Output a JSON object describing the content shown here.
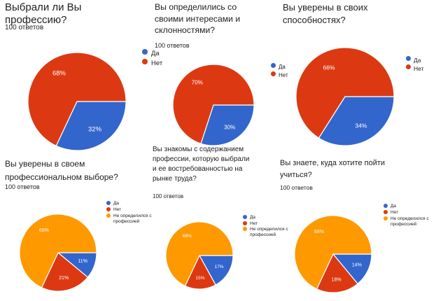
{
  "chart_data": [
    {
      "type": "pie",
      "title": "Выбрали ли Вы профессию?",
      "subtitle": "100 ответов",
      "legend": "right",
      "categories": [
        "Да",
        "Нет"
      ],
      "values": [
        32,
        68
      ],
      "labels": [
        "32%",
        "68%"
      ],
      "colors": [
        "#3366cc",
        "#dc3912"
      ]
    },
    {
      "type": "pie",
      "title": "Вы определились со своими интересами и склонностями?",
      "subtitle": "100 ответов",
      "legend": "right",
      "categories": [
        "Да",
        "Нет"
      ],
      "values": [
        30,
        70
      ],
      "labels": [
        "30%",
        "70%"
      ],
      "colors": [
        "#3366cc",
        "#dc3912"
      ]
    },
    {
      "type": "pie",
      "title": "Вы уверены в своих способностях?",
      "subtitle": "",
      "legend": "right",
      "categories": [
        "Да",
        "Нет"
      ],
      "values": [
        34,
        66
      ],
      "labels": [
        "34%",
        "66%"
      ],
      "colors": [
        "#3366cc",
        "#dc3912"
      ]
    },
    {
      "type": "pie",
      "title": "Вы уверены в своем профессиональном выборе?",
      "subtitle": "100 ответов",
      "legend": "right",
      "categories": [
        "Да",
        "Нет",
        "Не определился с профессией"
      ],
      "values": [
        11,
        21,
        68
      ],
      "labels": [
        "11%",
        "21%",
        "68%"
      ],
      "colors": [
        "#3366cc",
        "#dc3912",
        "#ff9900"
      ]
    },
    {
      "type": "pie",
      "title": "Вы знакомы с содержанием профессии, которую выбрали и ее востребованностью на рынке труда?",
      "subtitle": "100 ответов",
      "legend": "right",
      "categories": [
        "Да",
        "Нет",
        "Не определился с профессией"
      ],
      "values": [
        17,
        15,
        68
      ],
      "labels": [
        "17%",
        "15%",
        "68%"
      ],
      "colors": [
        "#3366cc",
        "#dc3912",
        "#ff9900"
      ]
    },
    {
      "type": "pie",
      "title": "Вы знаете, куда хотите пойти учиться?",
      "subtitle": "100 ответов",
      "legend": "right",
      "categories": [
        "Да",
        "Нет",
        "Не определился с профессией"
      ],
      "values": [
        14,
        18,
        68
      ],
      "labels": [
        "14%",
        "18%",
        "68%"
      ],
      "colors": [
        "#3366cc",
        "#dc3912",
        "#ff9900"
      ]
    }
  ]
}
